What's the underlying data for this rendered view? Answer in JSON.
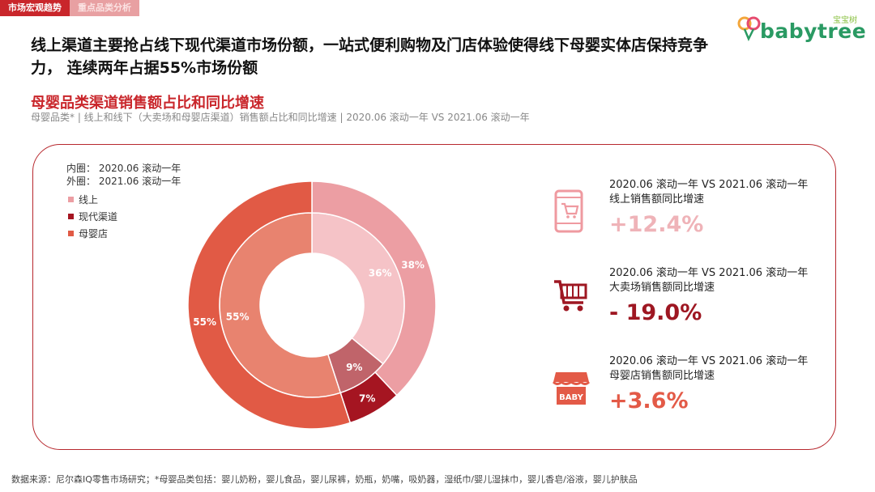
{
  "tabs": [
    "市场宏观趋势",
    "重点品类分析"
  ],
  "logo": {
    "word": "babytree",
    "cn": "宝宝树"
  },
  "headline": "线上渠道主要抢占线下现代渠道市场份额，一站式便利购物及门店体验使得线下母婴实体店保持竞争力， 连续两年占据55%市场份额",
  "section_title": "母婴品类渠道销售额占比和同比增速",
  "subtitle": "母婴品类* | 线上和线下（大卖场和母婴店渠道）销售额占比和同比增速 | 2020.06 滚动一年 VS 2021.06 滚动一年",
  "footer": "数据来源：尼尔森IQ零售市场研究；*母婴品类包括：婴儿奶粉，婴儿食品，婴儿尿裤，奶瓶，奶嘴，吸奶器，湿纸巾/婴儿湿抹巾，婴儿香皂/浴液，婴儿护肤品",
  "chart_data": {
    "type": "pie",
    "legend": {
      "inner_label": "内圈：  2020.06 滚动一年",
      "outer_label": "外圈：  2021.06 滚动一年"
    },
    "categories": [
      "线上",
      "现代渠道",
      "母婴店"
    ],
    "colors": {
      "线上": "#ec9ea3",
      "现代渠道": "#a51521",
      "母婴店": "#e15a45"
    },
    "inner_colors": {
      "线上": "#f5c3c7",
      "现代渠道": "#c0646a",
      "母婴店": "#e8836f"
    },
    "series": [
      {
        "ring": "inner",
        "values": [
          36,
          9,
          55
        ],
        "labels": [
          "36%",
          "9%",
          "55%"
        ]
      },
      {
        "ring": "outer",
        "values": [
          38,
          7,
          55
        ],
        "labels": [
          "38%",
          "7%",
          "55%"
        ]
      }
    ]
  },
  "metrics": [
    {
      "title1": "2020.06 滚动一年 VS 2021.06 滚动一年",
      "title2": "线上销售额同比增速",
      "value": "+12.4%",
      "color": "#efb3b8",
      "icon": "mobile-cart-icon"
    },
    {
      "title1": "2020.06 滚动一年 VS 2021.06 滚动一年",
      "title2": "大卖场销售额同比增速",
      "value": "- 19.0%",
      "color": "#9e1722",
      "icon": "shopping-cart-icon"
    },
    {
      "title1": "2020.06 滚动一年 VS 2021.06 滚动一年",
      "title2": "母婴店销售额同比增速",
      "value": "+3.6%",
      "color": "#e35a47",
      "icon": "baby-store-icon"
    }
  ],
  "baby_icon_text": "BABY"
}
